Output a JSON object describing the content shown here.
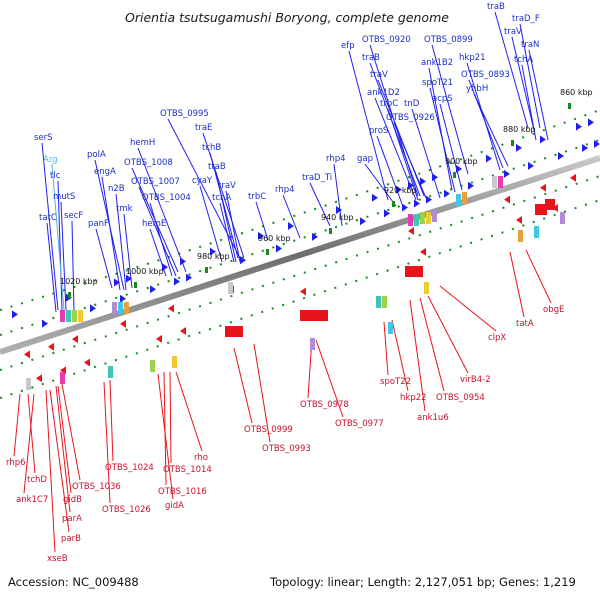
{
  "title": "Orientia tsutsugamushi Boryong, complete genome",
  "accession": "Accession: NC_009488",
  "summary": "Topology: linear; Length: 2,127,051 bp; Genes: 1,219",
  "ticks": [
    "860 kbp",
    "880 kbp",
    "900 kbp",
    "920 kbp",
    "940 kbp",
    "960 kbp",
    "980 kbp",
    "1000 kbp",
    "1020 kbp"
  ],
  "colors": {
    "forward": "#1f1ff0",
    "reverse": "#e8141c",
    "axis": "#808080",
    "tick": "#1a8a1a"
  },
  "labels_top": [
    "traB",
    "traD_F",
    "traV",
    "traN",
    "tchA",
    "OTBS_0899",
    "hkp21",
    "OTBS_0893",
    "yhbH",
    "efp",
    "OTBS_0920",
    "traB",
    "ank1B2",
    "traV",
    "ank1D2",
    "spoT21",
    "trbC",
    "tnD",
    "acpS",
    "OTBS_0926",
    "proS",
    "gap",
    "rhp4",
    "traD_Ti",
    "rhp4",
    "trbC",
    "OTBS_0995",
    "traE",
    "tchB",
    "ttaB",
    "cyaY",
    "traV",
    "tchA",
    "hemH",
    "OTBS_1008",
    "OTBS_1007",
    "OTBS_1004",
    "hemE",
    "polA",
    "engA",
    "n2B",
    "tmk",
    "panF",
    "serS",
    "tlc",
    "mutS",
    "tatC",
    "secF"
  ],
  "label_arg": "Arg",
  "labels_bottom": [
    "obgE",
    "tatA",
    "clpX",
    "virB4-2",
    "OTBS_0954",
    "ank1u6",
    "hkp22",
    "spoT22",
    "OTBS_0977",
    "OTBS_0978",
    "OTBS_0993",
    "OTBS_0999",
    "rho",
    "OTBS_1014",
    "OTBS_1016",
    "gidA",
    "OTBS_1024",
    "OTBS_1026",
    "OTBS_1036",
    "gidB",
    "parA",
    "parB",
    "xseB",
    "ank1C7",
    "tchD",
    "rhp6"
  ]
}
